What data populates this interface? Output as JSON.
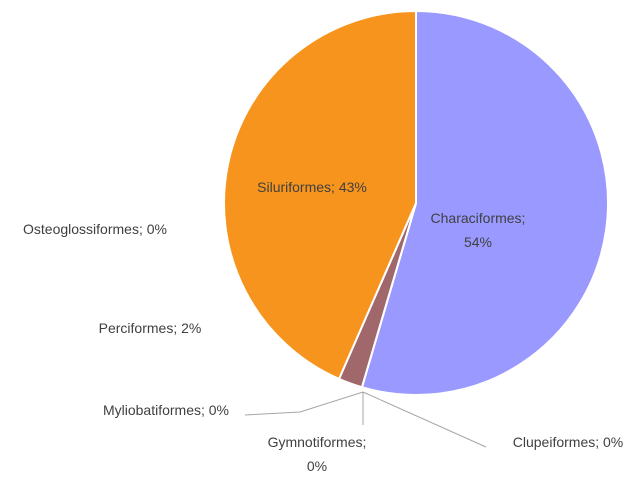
{
  "chart_data": {
    "type": "pie",
    "categories": [
      "Characiformes",
      "Clupeiformes",
      "Gymnotiformes",
      "Myliobatiformes",
      "Perciformes",
      "Osteoglossiformes",
      "Siluriformes"
    ],
    "values": [
      54,
      0,
      0,
      0,
      2,
      0,
      43
    ],
    "value_labels": [
      "Characiformes; 54%",
      "Clupeiformes; 0%",
      "Gymnotiformes; 0%",
      "Myliobatiformes; 0%",
      "Perciformes; 2%",
      "Osteoglossiformes; 0%",
      "Siluriformes; 43%"
    ],
    "colors": [
      "#9999ff",
      "#4f81bd",
      "#8064a2",
      "#4bacc6",
      "#a0686a",
      "#9bbb59",
      "#f7941d"
    ]
  }
}
